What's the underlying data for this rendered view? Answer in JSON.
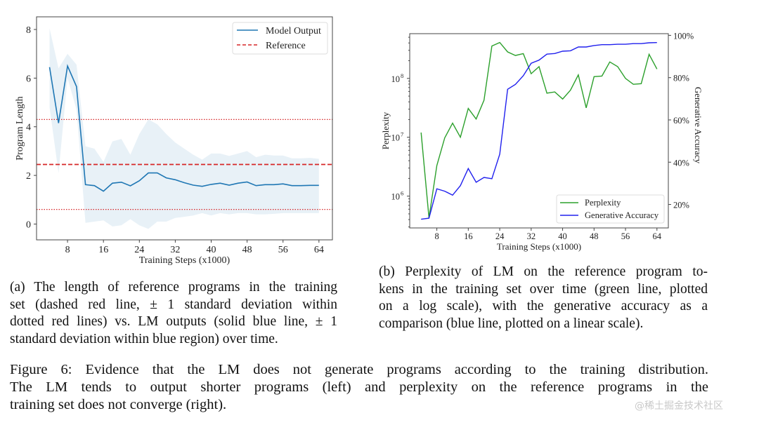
{
  "chart_data": [
    {
      "type": "line",
      "title": "",
      "xlabel": "Training Steps (x1000)",
      "ylabel": "Program Length",
      "xlim": [
        1.1,
        67
      ],
      "ylim": [
        -0.65,
        8.52
      ],
      "xticks": [
        8,
        16,
        24,
        32,
        40,
        48,
        56,
        64
      ],
      "yticks": [
        0,
        2,
        4,
        6,
        8
      ],
      "grid": false,
      "legend": {
        "placement": "top-right",
        "entries": [
          "Model Output",
          "Reference"
        ]
      },
      "x": [
        4,
        6,
        8,
        10,
        12,
        14,
        16,
        18,
        20,
        22,
        24,
        26,
        28,
        30,
        32,
        34,
        36,
        38,
        40,
        42,
        44,
        46,
        48,
        50,
        52,
        54,
        56,
        58,
        60,
        62,
        64
      ],
      "series": [
        {
          "name": "Model Output",
          "color": "#1f77b4",
          "values": [
            6.45,
            4.15,
            6.5,
            5.65,
            1.62,
            1.58,
            1.35,
            1.68,
            1.72,
            1.57,
            1.78,
            2.1,
            2.1,
            1.9,
            1.82,
            1.7,
            1.6,
            1.55,
            1.63,
            1.68,
            1.6,
            1.68,
            1.73,
            1.58,
            1.62,
            1.62,
            1.65,
            1.58,
            1.58,
            1.59,
            1.59
          ],
          "upper": [
            8.05,
            6.4,
            7.0,
            6.55,
            3.2,
            3.1,
            2.55,
            3.4,
            3.5,
            2.85,
            3.7,
            4.3,
            4.1,
            3.7,
            3.35,
            3.1,
            2.85,
            2.65,
            2.9,
            2.9,
            2.8,
            2.9,
            3.0,
            2.75,
            2.85,
            2.82,
            2.82,
            2.7,
            2.7,
            2.72,
            2.68
          ],
          "lower": [
            4.8,
            2.1,
            6.0,
            4.7,
            0.05,
            0.1,
            0.15,
            -0.1,
            -0.05,
            0.2,
            -0.05,
            -0.2,
            0.1,
            0.1,
            0.25,
            0.3,
            0.35,
            0.45,
            0.35,
            0.45,
            0.4,
            0.45,
            0.45,
            0.4,
            0.4,
            0.42,
            0.45,
            0.45,
            0.45,
            0.45,
            0.45
          ]
        },
        {
          "name": "Reference",
          "color": "#d62728",
          "mean": 2.45,
          "std_upper": 4.3,
          "std_lower": 0.6
        }
      ]
    },
    {
      "type": "line",
      "title": "",
      "xlabel": "Training Steps (x1000)",
      "ylabel": "Perplexity",
      "ylabel_right": "Generative Accuracy",
      "xlim": [
        1.1,
        66.9
      ],
      "ylim_log10": [
        5.46,
        8.76
      ],
      "ylim_right": [
        8.9,
        100.8
      ],
      "xticks": [
        8,
        16,
        24,
        32,
        40,
        48,
        56,
        64
      ],
      "yticks": [
        {
          "exp": 6,
          "label": "10",
          "sup": "6"
        },
        {
          "exp": 7,
          "label": "10",
          "sup": "7"
        },
        {
          "exp": 8,
          "label": "10",
          "sup": "8"
        }
      ],
      "yticks_right": [
        {
          "v": 20,
          "label": "20%"
        },
        {
          "v": 40,
          "label": "40%"
        },
        {
          "v": 60,
          "label": "60%"
        },
        {
          "v": 80,
          "label": "80%"
        },
        {
          "v": 100,
          "label": "100%"
        }
      ],
      "grid": false,
      "legend": {
        "placement": "bottom-right",
        "entries": [
          "Perplexity",
          "Generative Accuracy"
        ]
      },
      "x": [
        4,
        6,
        8,
        10,
        12,
        14,
        16,
        18,
        20,
        22,
        24,
        26,
        28,
        30,
        32,
        34,
        36,
        38,
        40,
        42,
        44,
        46,
        48,
        50,
        52,
        54,
        56,
        58,
        60,
        62,
        64
      ],
      "series": [
        {
          "name": "Perplexity",
          "color": "#2ca02c",
          "scale": "log10",
          "log10_values": [
            7.08,
            5.63,
            6.52,
            6.99,
            7.24,
            7.0,
            7.49,
            7.31,
            7.63,
            8.55,
            8.61,
            8.45,
            8.39,
            8.42,
            8.08,
            8.2,
            7.75,
            7.77,
            7.65,
            7.8,
            8.06,
            7.5,
            8.03,
            8.04,
            8.28,
            8.2,
            8.0,
            7.9,
            7.91,
            8.41,
            8.16
          ]
        },
        {
          "name": "Generative Accuracy",
          "color": "#2020ee",
          "axis": "right",
          "unit": "%",
          "values": [
            13.0,
            13.5,
            27.4,
            26.3,
            24.4,
            28.9,
            37,
            30.5,
            32.8,
            32.2,
            43.8,
            74.5,
            76.8,
            80.9,
            86.8,
            88.3,
            91.1,
            91.4,
            92.5,
            92.7,
            94.5,
            94.5,
            95.2,
            95.6,
            95.6,
            95.8,
            95.8,
            96.1,
            96.1,
            96.5,
            96.6
          ]
        }
      ]
    }
  ],
  "captions": {
    "a": [
      "(a) The length of reference programs in the training",
      "set (dashed red line, ± 1 standard deviation within",
      "dotted red lines) vs. LM outputs (solid blue line, ± 1",
      "standard deviation within blue region) over time."
    ],
    "b": [
      "(b) Perplexity of LM on the reference program to-",
      "kens in the training set over time (green line, plotted",
      "on a log scale), with the generative accuracy as a",
      "comparison (blue line, plotted on a linear scale)."
    ],
    "figure": [
      "Figure 6: Evidence that the LM does not generate programs according to the training distribution.",
      "The LM tends to output shorter programs (left) and perplexity on the reference programs in the",
      "training set does not converge (right)."
    ]
  },
  "watermark": "@稀土掘金技术社区"
}
